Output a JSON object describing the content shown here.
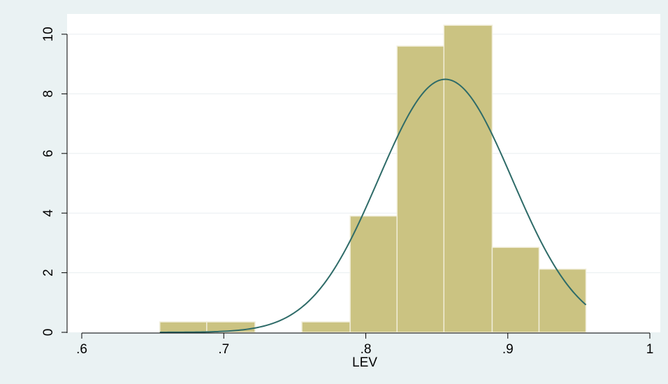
{
  "chart_data": {
    "type": "bar",
    "title": "",
    "xlabel": "LEV",
    "ylabel": "",
    "xlim": [
      0.6,
      1.0
    ],
    "ylim": [
      0,
      10.5
    ],
    "x_ticks": [
      0.6,
      0.7,
      0.8,
      0.9,
      1.0
    ],
    "x_tick_labels": [
      ".6",
      ".7",
      ".8",
      ".9",
      "1"
    ],
    "y_ticks": [
      0,
      2,
      4,
      6,
      8,
      10
    ],
    "y_tick_labels": [
      "0",
      "2",
      "4",
      "6",
      "8",
      "10"
    ],
    "grid": "horizontal",
    "bin_edges": [
      0.655,
      0.688,
      0.722,
      0.755,
      0.789,
      0.822,
      0.855,
      0.889,
      0.922,
      0.955
    ],
    "values": [
      0.35,
      0.35,
      0,
      0.35,
      3.9,
      9.6,
      10.3,
      2.85,
      2.12
    ],
    "overlay": {
      "type": "normal-density",
      "mean": 0.856,
      "sd": 0.047
    },
    "colors": {
      "background": "#eaf2f3",
      "plot_area": "#ffffff",
      "bar_fill": "#cbc382",
      "bar_stroke": "#f0edd8",
      "curve": "#2e6b68",
      "grid": "#e8eef0"
    }
  }
}
